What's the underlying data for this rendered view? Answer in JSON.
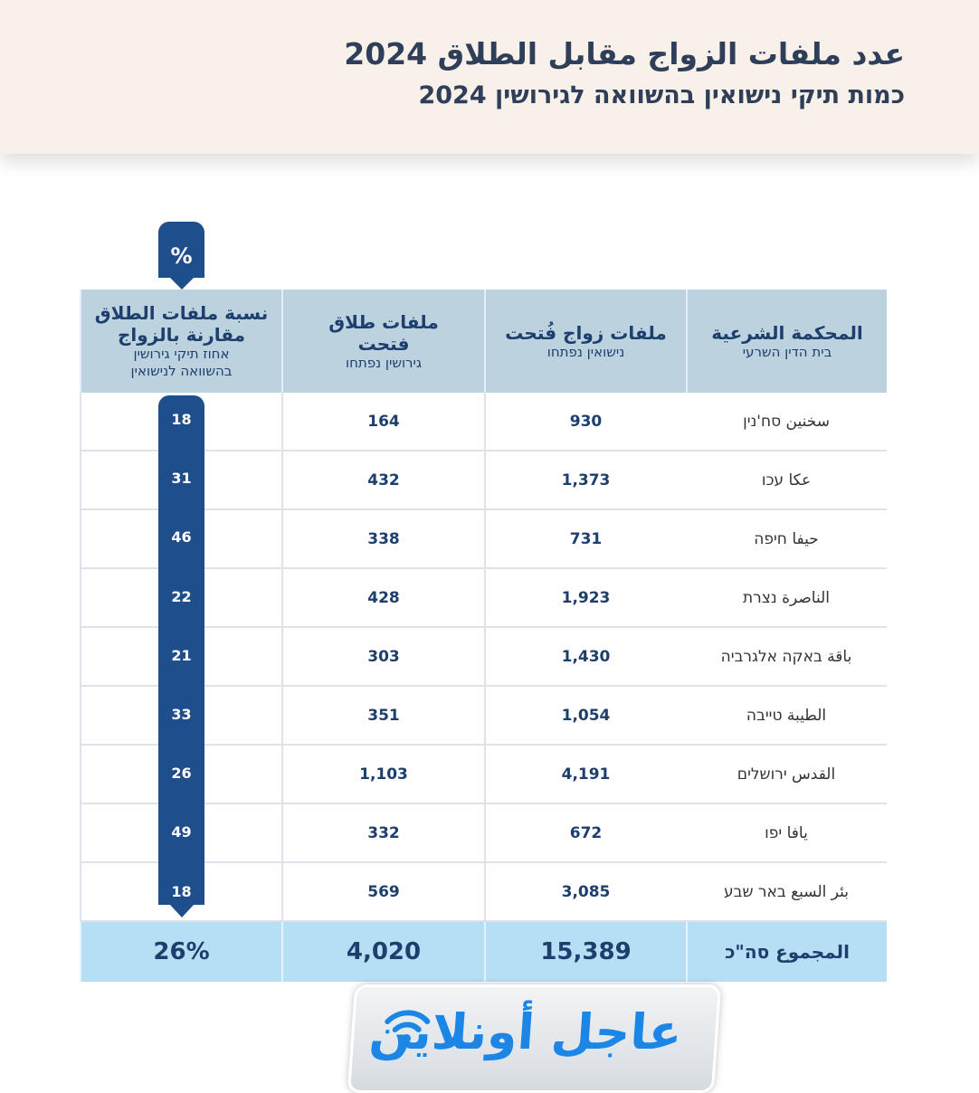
{
  "title": "عدد ملفات الزواج مقابل الطلاق 2024",
  "subtitle": "כמות תיקי נישואין בהשוואה לגירושין 2024",
  "percent_tab": "%",
  "chart_data": {
    "type": "table",
    "title": "عدد ملفات الزواج مقابل الطلاق 2024",
    "columns": [
      {
        "main": "المحكمة الشرعية",
        "sub": "בית הדין השרעי"
      },
      {
        "main": "ملفات زواج فُتحت",
        "sub": "נישואין נפתחו"
      },
      {
        "main": "ملفات طلاق فتحت",
        "sub": "גירושין נפתחו"
      },
      {
        "main": "نسبة ملفات الطلاق مقارنة بالزواج",
        "sub": "אחוז תיקי גירושין בהשוואה לנישואין"
      }
    ],
    "rows": [
      {
        "court": "سخنين סח'נין",
        "marriage": "930",
        "divorce": "164",
        "pct": "18"
      },
      {
        "court": "عكا עכו",
        "marriage": "1,373",
        "divorce": "432",
        "pct": "31"
      },
      {
        "court": "حيفا חיפה",
        "marriage": "731",
        "divorce": "338",
        "pct": "46"
      },
      {
        "court": "الناصرة נצרת",
        "marriage": "1,923",
        "divorce": "428",
        "pct": "22"
      },
      {
        "court": "باقة באקה אלגרביה",
        "marriage": "1,430",
        "divorce": "303",
        "pct": "21"
      },
      {
        "court": "الطيبة טייבה",
        "marriage": "1,054",
        "divorce": "351",
        "pct": "33"
      },
      {
        "court": "القدس ירושלים",
        "marriage": "4,191",
        "divorce": "1,103",
        "pct": "26"
      },
      {
        "court": "يافا יפו",
        "marriage": "672",
        "divorce": "332",
        "pct": "49"
      },
      {
        "court": "بئر السبع באר שבע",
        "marriage": "3,085",
        "divorce": "569",
        "pct": "18"
      }
    ],
    "total": {
      "label": "المجموع סה\"כ",
      "marriage": "15,389",
      "divorce": "4,020",
      "pct": "26%"
    }
  },
  "logo": "عاجل أونلاين",
  "colors": {
    "accent": "#1f4e8c",
    "header": "#bcd2df",
    "total": "#b6def4",
    "logo": "#1c86e6"
  }
}
